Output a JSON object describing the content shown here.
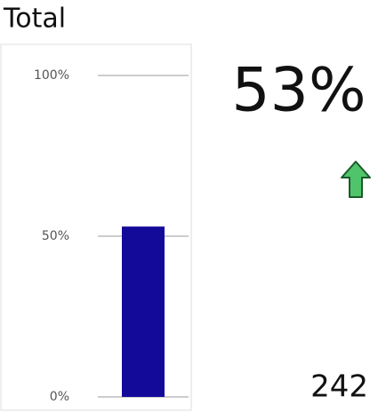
{
  "chart_data": {
    "type": "bar",
    "title": "Total",
    "categories": [
      null
    ],
    "values": [
      53
    ],
    "value_labels": [
      "53%"
    ],
    "color": "#140a9a",
    "ylim": [
      0,
      100
    ],
    "yticks": [
      {
        "value": 0,
        "label": "0%"
      },
      {
        "value": 50,
        "label": "50%"
      },
      {
        "value": 100,
        "label": "100%"
      }
    ],
    "grid": true,
    "trend": "up",
    "count": 242
  }
}
